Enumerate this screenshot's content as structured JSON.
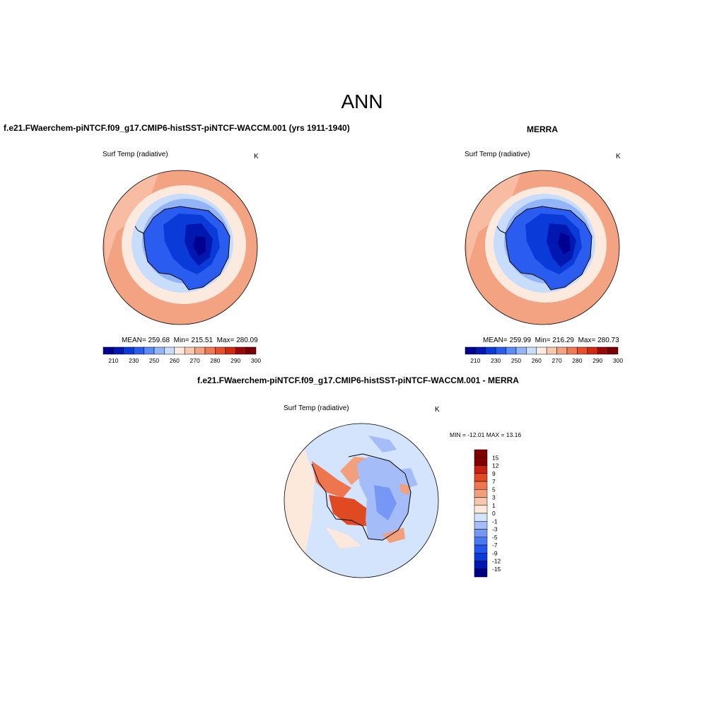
{
  "figure": {
    "title": "ANN",
    "colors": {
      "abs_scale": [
        "#000090",
        "#0018b0",
        "#0a3ad8",
        "#2a5cf0",
        "#5a8cf5",
        "#93b5f8",
        "#c8dcfc",
        "#fdeade",
        "#f9c8b0",
        "#f3a282",
        "#ef7a54",
        "#e8502c",
        "#d02a14",
        "#9c0a08",
        "#7a0000"
      ],
      "diff_scale": [
        "#000080",
        "#0016b4",
        "#0a3ad8",
        "#2456ee",
        "#4878f2",
        "#7698f4",
        "#a4bcf8",
        "#d4e4fc",
        "#fde8dc",
        "#f8c6ac",
        "#f2a07c",
        "#ee764e",
        "#e04a22",
        "#c82010",
        "#800000"
      ]
    }
  },
  "panels": {
    "model": {
      "title": "f.e21.FWaerchem-piNTCF.f09_g17.CMIP6-histSST-piNTCF-WACCM.001 (yrs 1911-1940)",
      "variable": "Surf Temp (radiative)",
      "units": "K",
      "mean_label": "MEAN=",
      "mean": "259.68",
      "min_label": "Min=",
      "min": "215.51",
      "max_label": "Max=",
      "max": "280.09",
      "tick_labels": [
        "210",
        "230",
        "250",
        "260",
        "270",
        "280",
        "290",
        "300"
      ]
    },
    "obs": {
      "title": "MERRA",
      "variable": "Surf Temp (radiative)",
      "units": "K",
      "mean_label": "MEAN=",
      "mean": "259.99",
      "min_label": "Min=",
      "min": "216.29",
      "max_label": "Max=",
      "max": "280.73",
      "tick_labels": [
        "210",
        "230",
        "250",
        "260",
        "270",
        "280",
        "290",
        "300"
      ]
    },
    "diff": {
      "title": "f.e21.FWaerchem-piNTCF.f09_g17.CMIP6-histSST-piNTCF-WACCM.001 - MERRA",
      "variable": "Surf Temp (radiative)",
      "units": "K",
      "min_label": "MIN =",
      "min": "-12.01",
      "max_label": "MAX =",
      "max": "13.16",
      "tick_labels": [
        "15",
        "12",
        "9",
        "7",
        "5",
        "3",
        "1",
        "0",
        "-1",
        "-3",
        "-5",
        "-7",
        "-9",
        "-12",
        "-15"
      ]
    }
  }
}
